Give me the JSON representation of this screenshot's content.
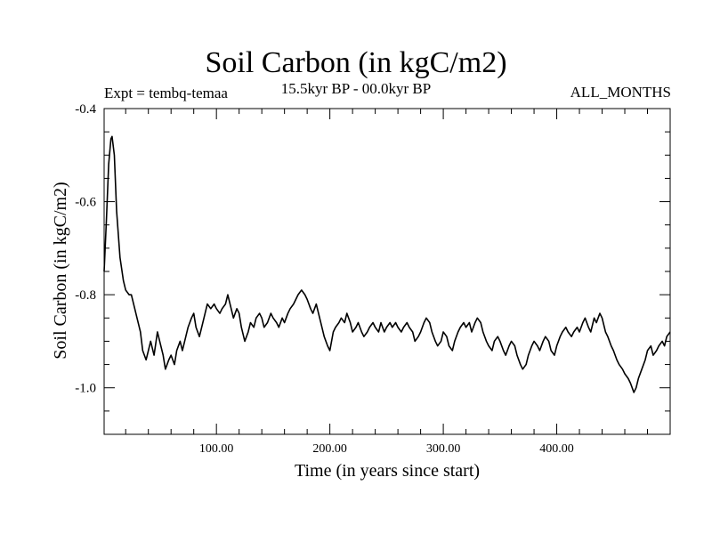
{
  "chart_data": {
    "type": "line",
    "title": "Soil Carbon (in kgC/m2)",
    "subtitle": "15.5kyr BP - 00.0kyr BP",
    "left_note": "Expt = tembq-temaa",
    "right_note": "ALL_MONTHS",
    "xlabel": "Time (in years since start)",
    "ylabel": "Soil Carbon (in kgC/m2)",
    "xlim": [
      1,
      500
    ],
    "ylim": [
      -1.1,
      -0.4
    ],
    "x_ticks": [
      {
        "value": 100,
        "label": "100.00"
      },
      {
        "value": 200,
        "label": "200.00"
      },
      {
        "value": 300,
        "label": "300.00"
      },
      {
        "value": 400,
        "label": "400.00"
      }
    ],
    "y_ticks": [
      {
        "value": -0.4,
        "label": "-0.4"
      },
      {
        "value": -0.6,
        "label": "-0.6"
      },
      {
        "value": -0.8,
        "label": "-0.8"
      },
      {
        "value": -1.0,
        "label": "-1.0"
      }
    ],
    "series": [
      {
        "name": "Soil Carbon",
        "color": "#000000",
        "points": [
          [
            1,
            -0.75
          ],
          [
            3,
            -0.64
          ],
          [
            5,
            -0.52
          ],
          [
            7,
            -0.465
          ],
          [
            8,
            -0.46
          ],
          [
            10,
            -0.5
          ],
          [
            12,
            -0.62
          ],
          [
            15,
            -0.72
          ],
          [
            18,
            -0.77
          ],
          [
            20,
            -0.79
          ],
          [
            23,
            -0.8
          ],
          [
            25,
            -0.8
          ],
          [
            28,
            -0.83
          ],
          [
            30,
            -0.85
          ],
          [
            33,
            -0.88
          ],
          [
            35,
            -0.92
          ],
          [
            38,
            -0.94
          ],
          [
            40,
            -0.92
          ],
          [
            42,
            -0.9
          ],
          [
            45,
            -0.93
          ],
          [
            48,
            -0.88
          ],
          [
            50,
            -0.9
          ],
          [
            53,
            -0.93
          ],
          [
            55,
            -0.96
          ],
          [
            58,
            -0.94
          ],
          [
            60,
            -0.93
          ],
          [
            63,
            -0.95
          ],
          [
            65,
            -0.92
          ],
          [
            68,
            -0.9
          ],
          [
            70,
            -0.92
          ],
          [
            73,
            -0.89
          ],
          [
            75,
            -0.87
          ],
          [
            78,
            -0.85
          ],
          [
            80,
            -0.84
          ],
          [
            82,
            -0.87
          ],
          [
            85,
            -0.89
          ],
          [
            88,
            -0.86
          ],
          [
            90,
            -0.84
          ],
          [
            92,
            -0.82
          ],
          [
            95,
            -0.83
          ],
          [
            98,
            -0.82
          ],
          [
            100,
            -0.83
          ],
          [
            103,
            -0.84
          ],
          [
            105,
            -0.83
          ],
          [
            108,
            -0.82
          ],
          [
            110,
            -0.8
          ],
          [
            112,
            -0.82
          ],
          [
            115,
            -0.85
          ],
          [
            118,
            -0.83
          ],
          [
            120,
            -0.84
          ],
          [
            122,
            -0.87
          ],
          [
            125,
            -0.9
          ],
          [
            128,
            -0.88
          ],
          [
            130,
            -0.86
          ],
          [
            133,
            -0.87
          ],
          [
            135,
            -0.85
          ],
          [
            138,
            -0.84
          ],
          [
            140,
            -0.85
          ],
          [
            142,
            -0.87
          ],
          [
            145,
            -0.86
          ],
          [
            148,
            -0.84
          ],
          [
            150,
            -0.85
          ],
          [
            153,
            -0.86
          ],
          [
            155,
            -0.87
          ],
          [
            158,
            -0.85
          ],
          [
            160,
            -0.86
          ],
          [
            163,
            -0.84
          ],
          [
            165,
            -0.83
          ],
          [
            168,
            -0.82
          ],
          [
            170,
            -0.81
          ],
          [
            172,
            -0.8
          ],
          [
            175,
            -0.79
          ],
          [
            178,
            -0.8
          ],
          [
            180,
            -0.81
          ],
          [
            183,
            -0.83
          ],
          [
            185,
            -0.84
          ],
          [
            188,
            -0.82
          ],
          [
            190,
            -0.84
          ],
          [
            193,
            -0.87
          ],
          [
            195,
            -0.89
          ],
          [
            198,
            -0.91
          ],
          [
            200,
            -0.92
          ],
          [
            203,
            -0.88
          ],
          [
            205,
            -0.87
          ],
          [
            208,
            -0.86
          ],
          [
            210,
            -0.85
          ],
          [
            213,
            -0.86
          ],
          [
            215,
            -0.84
          ],
          [
            218,
            -0.86
          ],
          [
            220,
            -0.88
          ],
          [
            223,
            -0.87
          ],
          [
            225,
            -0.86
          ],
          [
            228,
            -0.88
          ],
          [
            230,
            -0.89
          ],
          [
            233,
            -0.88
          ],
          [
            235,
            -0.87
          ],
          [
            238,
            -0.86
          ],
          [
            240,
            -0.87
          ],
          [
            243,
            -0.88
          ],
          [
            245,
            -0.86
          ],
          [
            248,
            -0.88
          ],
          [
            250,
            -0.87
          ],
          [
            253,
            -0.86
          ],
          [
            255,
            -0.87
          ],
          [
            258,
            -0.86
          ],
          [
            260,
            -0.87
          ],
          [
            263,
            -0.88
          ],
          [
            265,
            -0.87
          ],
          [
            268,
            -0.86
          ],
          [
            270,
            -0.87
          ],
          [
            273,
            -0.88
          ],
          [
            275,
            -0.9
          ],
          [
            278,
            -0.89
          ],
          [
            280,
            -0.88
          ],
          [
            283,
            -0.86
          ],
          [
            285,
            -0.85
          ],
          [
            288,
            -0.86
          ],
          [
            290,
            -0.88
          ],
          [
            293,
            -0.9
          ],
          [
            295,
            -0.91
          ],
          [
            298,
            -0.9
          ],
          [
            300,
            -0.88
          ],
          [
            303,
            -0.89
          ],
          [
            305,
            -0.91
          ],
          [
            308,
            -0.92
          ],
          [
            310,
            -0.9
          ],
          [
            313,
            -0.88
          ],
          [
            315,
            -0.87
          ],
          [
            318,
            -0.86
          ],
          [
            320,
            -0.87
          ],
          [
            323,
            -0.86
          ],
          [
            325,
            -0.88
          ],
          [
            328,
            -0.86
          ],
          [
            330,
            -0.85
          ],
          [
            333,
            -0.86
          ],
          [
            335,
            -0.88
          ],
          [
            338,
            -0.9
          ],
          [
            340,
            -0.91
          ],
          [
            343,
            -0.92
          ],
          [
            345,
            -0.9
          ],
          [
            348,
            -0.89
          ],
          [
            350,
            -0.9
          ],
          [
            353,
            -0.92
          ],
          [
            355,
            -0.93
          ],
          [
            358,
            -0.91
          ],
          [
            360,
            -0.9
          ],
          [
            363,
            -0.91
          ],
          [
            365,
            -0.93
          ],
          [
            368,
            -0.95
          ],
          [
            370,
            -0.96
          ],
          [
            373,
            -0.95
          ],
          [
            375,
            -0.93
          ],
          [
            378,
            -0.91
          ],
          [
            380,
            -0.9
          ],
          [
            383,
            -0.91
          ],
          [
            385,
            -0.92
          ],
          [
            388,
            -0.9
          ],
          [
            390,
            -0.89
          ],
          [
            393,
            -0.9
          ],
          [
            395,
            -0.92
          ],
          [
            398,
            -0.93
          ],
          [
            400,
            -0.91
          ],
          [
            403,
            -0.89
          ],
          [
            405,
            -0.88
          ],
          [
            408,
            -0.87
          ],
          [
            410,
            -0.88
          ],
          [
            413,
            -0.89
          ],
          [
            415,
            -0.88
          ],
          [
            418,
            -0.87
          ],
          [
            420,
            -0.88
          ],
          [
            423,
            -0.86
          ],
          [
            425,
            -0.85
          ],
          [
            428,
            -0.87
          ],
          [
            430,
            -0.88
          ],
          [
            433,
            -0.85
          ],
          [
            435,
            -0.86
          ],
          [
            438,
            -0.84
          ],
          [
            440,
            -0.85
          ],
          [
            443,
            -0.88
          ],
          [
            445,
            -0.89
          ],
          [
            448,
            -0.91
          ],
          [
            450,
            -0.92
          ],
          [
            453,
            -0.94
          ],
          [
            455,
            -0.95
          ],
          [
            458,
            -0.96
          ],
          [
            460,
            -0.97
          ],
          [
            463,
            -0.98
          ],
          [
            465,
            -0.99
          ],
          [
            468,
            -1.01
          ],
          [
            470,
            -1.0
          ],
          [
            472,
            -0.98
          ],
          [
            475,
            -0.96
          ],
          [
            478,
            -0.94
          ],
          [
            480,
            -0.92
          ],
          [
            483,
            -0.91
          ],
          [
            485,
            -0.93
          ],
          [
            488,
            -0.92
          ],
          [
            490,
            -0.91
          ],
          [
            493,
            -0.9
          ],
          [
            495,
            -0.91
          ],
          [
            497,
            -0.89
          ],
          [
            500,
            -0.88
          ]
        ]
      }
    ]
  }
}
